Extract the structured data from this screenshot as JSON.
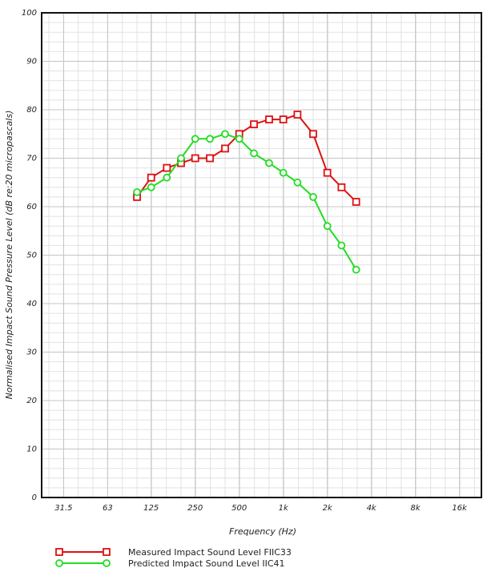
{
  "chart_data": {
    "type": "line",
    "xlabel": "Frequency (Hz)",
    "ylabel": "Normalised Impact Sound Pressure Level (dB re:20 micropascals)",
    "xscale": "log",
    "xticks": [
      31.5,
      63,
      125,
      250,
      500,
      1000,
      2000,
      4000,
      8000,
      16000
    ],
    "xtick_labels": [
      "31.5",
      "63",
      "125",
      "250",
      "500",
      "1k",
      "2k",
      "4k",
      "8k",
      "16k"
    ],
    "xlim": [
      22.3,
      22600
    ],
    "ylim": [
      0,
      100
    ],
    "yticks": [
      0,
      10,
      20,
      30,
      40,
      50,
      60,
      70,
      80,
      90,
      100
    ],
    "ytick_labels": [
      "0",
      "10",
      "20",
      "30",
      "40",
      "50",
      "60",
      "70",
      "80",
      "90",
      "100"
    ],
    "grid": true,
    "legend_position": "bottom-left",
    "x": [
      100,
      125,
      160,
      200,
      250,
      315,
      400,
      500,
      630,
      800,
      1000,
      1250,
      1600,
      2000,
      2500,
      3150
    ],
    "series": [
      {
        "name": "Measured Impact Sound Level FIIC33",
        "color": "#dd1111",
        "marker": "square",
        "values": [
          62,
          66,
          68,
          69,
          70,
          70,
          72,
          75,
          77,
          78,
          78,
          79,
          75,
          67,
          64,
          61
        ]
      },
      {
        "name": "Predicted Impact Sound Level IIC41",
        "color": "#22dd22",
        "marker": "circle",
        "values": [
          63,
          64,
          66,
          70,
          74,
          74,
          75,
          74,
          71,
          69,
          67,
          65,
          62,
          56,
          52,
          47
        ]
      }
    ]
  }
}
